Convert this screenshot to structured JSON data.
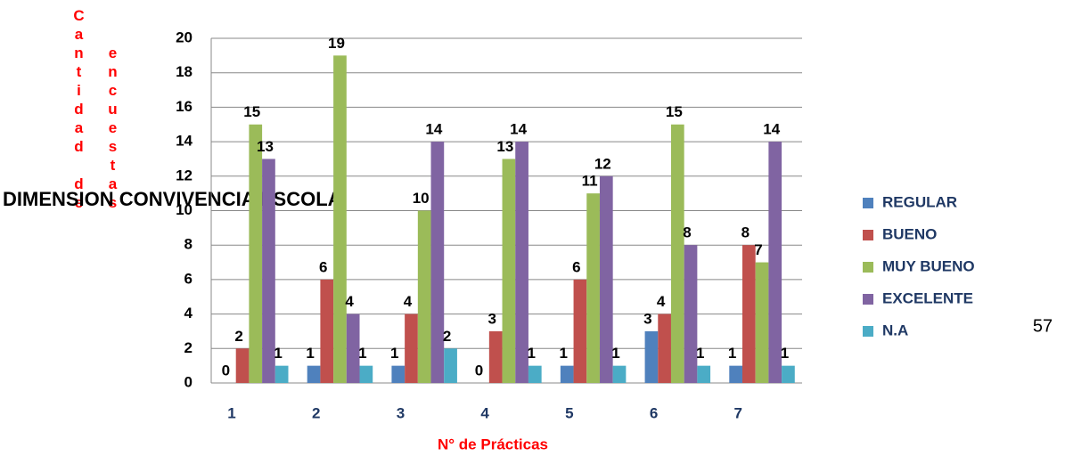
{
  "chart_data": {
    "type": "bar",
    "title": "DIMENSION CONVIVENCIA ESCOLA",
    "y_label": [
      "Cantidad de",
      "encuestas"
    ],
    "x_label": "N° de Prácticas",
    "page_number": "57",
    "categories": [
      "1",
      "2",
      "3",
      "4",
      "5",
      "6",
      "7"
    ],
    "series": [
      {
        "name": "REGULAR",
        "color": "#4f81bd",
        "values": [
          0,
          1,
          1,
          0,
          1,
          3,
          1
        ]
      },
      {
        "name": "BUENO",
        "color": "#c0504d",
        "values": [
          2,
          6,
          4,
          3,
          6,
          4,
          8
        ]
      },
      {
        "name": "MUY BUENO",
        "color": "#9bbb59",
        "values": [
          15,
          19,
          10,
          13,
          11,
          15,
          7
        ]
      },
      {
        "name": "EXCELENTE",
        "color": "#8064a2",
        "values": [
          13,
          4,
          14,
          14,
          12,
          8,
          14
        ]
      },
      {
        "name": "N.A",
        "color": "#4bacc6",
        "values": [
          1,
          1,
          2,
          1,
          1,
          1,
          1
        ]
      }
    ],
    "ylim": [
      0,
      20
    ],
    "yticks": [
      0,
      2,
      4,
      6,
      8,
      10,
      12,
      14,
      16,
      18,
      20
    ],
    "grid": true,
    "legend": "right"
  }
}
